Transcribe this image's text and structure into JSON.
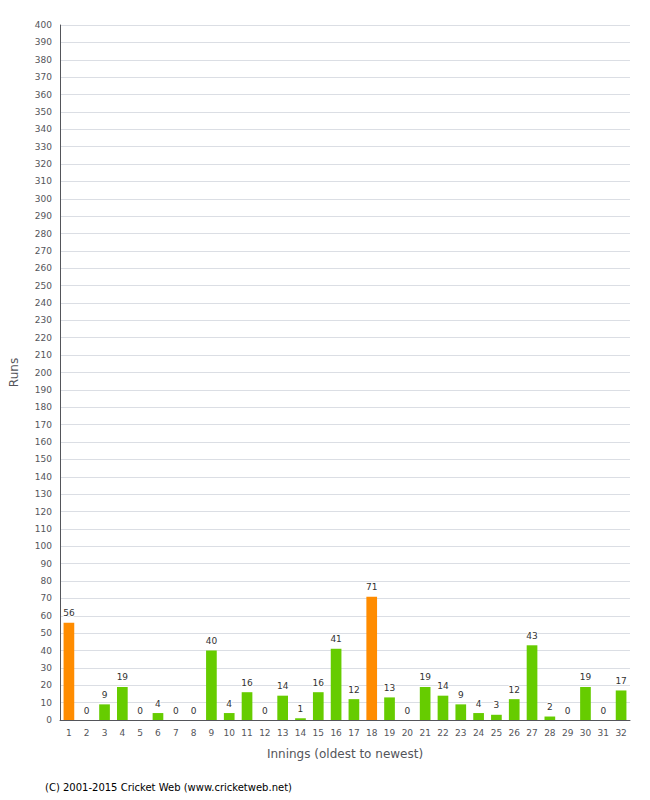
{
  "chart_data": {
    "type": "bar",
    "xlabel": "Innings (oldest to newest)",
    "ylabel": "Runs",
    "categories": [
      "1",
      "2",
      "3",
      "4",
      "5",
      "6",
      "7",
      "8",
      "9",
      "10",
      "11",
      "12",
      "13",
      "14",
      "15",
      "16",
      "17",
      "18",
      "19",
      "20",
      "21",
      "22",
      "23",
      "24",
      "25",
      "26",
      "27",
      "28",
      "29",
      "30",
      "31",
      "32"
    ],
    "values": [
      56,
      0,
      9,
      19,
      0,
      4,
      0,
      0,
      40,
      4,
      16,
      0,
      14,
      1,
      16,
      41,
      12,
      71,
      13,
      0,
      19,
      14,
      9,
      4,
      3,
      12,
      43,
      2,
      0,
      19,
      0,
      17
    ],
    "colors": [
      "#ff8c00",
      "#66cc00",
      "#66cc00",
      "#66cc00",
      "#66cc00",
      "#66cc00",
      "#66cc00",
      "#66cc00",
      "#66cc00",
      "#66cc00",
      "#66cc00",
      "#66cc00",
      "#66cc00",
      "#66cc00",
      "#66cc00",
      "#66cc00",
      "#66cc00",
      "#ff8c00",
      "#66cc00",
      "#66cc00",
      "#66cc00",
      "#66cc00",
      "#66cc00",
      "#66cc00",
      "#66cc00",
      "#66cc00",
      "#66cc00",
      "#66cc00",
      "#66cc00",
      "#66cc00",
      "#66cc00",
      "#66cc00"
    ],
    "ylim": [
      0,
      400
    ],
    "yticks": [
      0,
      10,
      20,
      30,
      40,
      50,
      60,
      70,
      80,
      90,
      100,
      110,
      120,
      130,
      140,
      150,
      160,
      170,
      180,
      190,
      200,
      210,
      220,
      230,
      240,
      250,
      260,
      270,
      280,
      290,
      300,
      310,
      320,
      330,
      340,
      350,
      360,
      370,
      380,
      390,
      400
    ],
    "grid": true,
    "data_labels": true,
    "annotations": [
      "(C) 2001-2015 Cricket Web (www.cricketweb.net)"
    ]
  }
}
